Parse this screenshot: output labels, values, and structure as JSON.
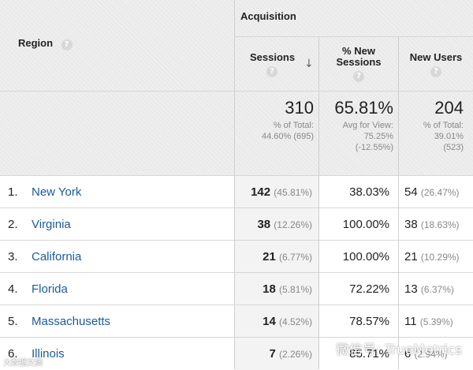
{
  "header": {
    "region_label": "Region",
    "acquisition_label": "Acquisition",
    "sessions_label": "Sessions",
    "new_sessions_label_line1": "% New",
    "new_sessions_label_line2": "Sessions",
    "new_users_label": "New Users",
    "help_glyph": "?",
    "sort_arrow": "↓"
  },
  "summary": {
    "sessions_total": "310",
    "sessions_pct_line1": "% of Total:",
    "sessions_pct_line2": "44.60% (695)",
    "new_sessions_total": "65.81%",
    "new_sessions_line1": "Avg for View:",
    "new_sessions_line2": "75.25%",
    "new_sessions_line3": "(-12.55%)",
    "new_users_total": "204",
    "new_users_line1": "% of Total:",
    "new_users_line2": "39.01%",
    "new_users_line3": "(523)"
  },
  "rows": [
    {
      "num": "1.",
      "region": "New York",
      "sessions": "142",
      "sessions_pct": "(45.81%)",
      "new_sessions": "38.03%",
      "new_users": "54",
      "new_users_pct": "(26.47%)"
    },
    {
      "num": "2.",
      "region": "Virginia",
      "sessions": "38",
      "sessions_pct": "(12.26%)",
      "new_sessions": "100.00%",
      "new_users": "38",
      "new_users_pct": "(18.63%)"
    },
    {
      "num": "3.",
      "region": "California",
      "sessions": "21",
      "sessions_pct": "(6.77%)",
      "new_sessions": "100.00%",
      "new_users": "21",
      "new_users_pct": "(10.29%)"
    },
    {
      "num": "4.",
      "region": "Florida",
      "sessions": "18",
      "sessions_pct": "(5.81%)",
      "new_sessions": "72.22%",
      "new_users": "13",
      "new_users_pct": "(6.37%)"
    },
    {
      "num": "5.",
      "region": "Massachusetts",
      "sessions": "14",
      "sessions_pct": "(4.52%)",
      "new_sessions": "78.57%",
      "new_users": "11",
      "new_users_pct": "(5.39%)"
    },
    {
      "num": "6.",
      "region": "Illinois",
      "sessions": "7",
      "sessions_pct": "(2.26%)",
      "new_sessions": "85.71%",
      "new_users": "6",
      "new_users_pct": "(2.94%)"
    }
  ],
  "watermark": {
    "text": "微信号: TrueMetrics",
    "corner_text": "大数据文摘"
  }
}
